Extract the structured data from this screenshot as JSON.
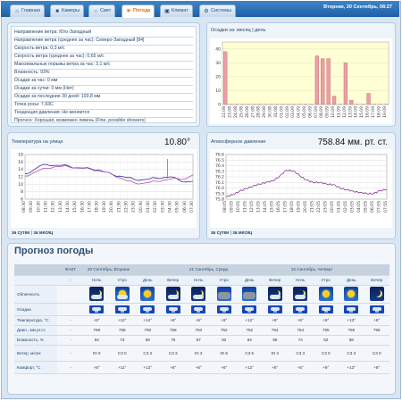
{
  "nav": {
    "tabs": [
      {
        "label": "Главная",
        "icon": "house-icon",
        "glyph": "⌂"
      },
      {
        "label": "Камеры",
        "icon": "camera-icon",
        "glyph": "■"
      },
      {
        "label": "Свет",
        "icon": "lightbulb-icon",
        "glyph": "○"
      },
      {
        "label": "Погода",
        "icon": "weather-icon",
        "glyph": "☀",
        "active": true
      },
      {
        "label": "Климат",
        "icon": "climate-icon",
        "glyph": "▣"
      },
      {
        "label": "Системы",
        "icon": "gear-icon",
        "glyph": "⚙"
      }
    ],
    "datetime": "Вторник, 20 Сентябрь, 08:27"
  },
  "current": {
    "lines": [
      "Направление ветра: Юго-Западный",
      "Направление ветра (среднее за час): Северо-Западный [84]",
      "Скорость ветра: 0,3 м/с",
      "Скорость ветра (среднее за час): 0,65 м/с",
      "Максимальные порывы ветра за час: 3,1 м/с",
      "Влажность: 93%",
      "Осадки за час: 0 мм",
      "Осадки за сутки: 0 мм (Нет)",
      "Осадки за последние 30 дней: 193,8 мм",
      "Точка росы: 7,93С",
      "Тенденция давления: Не меняется",
      "Прогноз: Хорошая, возможен ливень (Fine, possible showers)"
    ]
  },
  "temperature_panel": {
    "title": "Температура на улице",
    "value": "10.80°",
    "link_day": "за сутки",
    "link_month": "за месяц",
    "separator": "|"
  },
  "pressure_panel": {
    "title": "Атмосферное давление",
    "value": "758.84 мм. рт. ст.",
    "link_day": "за сутки",
    "link_month": "за месяц",
    "separator": "|"
  },
  "rain_panel": {
    "title": "Осадки за:",
    "link_month": "месяц",
    "separator": "|",
    "link_day": "день"
  },
  "chart_data": [
    {
      "type": "bar",
      "categories": [
        "22.08",
        "23.08",
        "24.08",
        "25.08",
        "26.08",
        "27.08",
        "28.08",
        "29.08",
        "30.08",
        "31.08",
        "01.09",
        "02.09",
        "03.09",
        "04.09",
        "05.09",
        "06.09",
        "07.09",
        "08.09",
        "09.09",
        "10.09",
        "11.09",
        "12.09",
        "13.09",
        "14.09",
        "15.09",
        "16.09",
        "17.09",
        "18.09",
        "19.09"
      ],
      "values": [
        38,
        0.2,
        0.2,
        0.2,
        0.2,
        0.2,
        0.2,
        0.2,
        0.2,
        0.2,
        0.2,
        0.2,
        0.2,
        0.2,
        0.2,
        0.2,
        35,
        33,
        33,
        6,
        0.2,
        30,
        3,
        0.2,
        0.2,
        8,
        0.2,
        0.2,
        0.2
      ],
      "ylim": [
        0,
        45
      ],
      "yticks": [
        0,
        10,
        20,
        30,
        40
      ],
      "color": "#e9a0a8",
      "background": "#ffffd6"
    },
    {
      "type": "line",
      "x": [
        "08:30",
        "09:30",
        "10:30",
        "11:30",
        "12:30",
        "13:30",
        "14:30",
        "15:30",
        "16:30",
        "17:30",
        "18:30",
        "19:30",
        "20:30",
        "21:30",
        "22:30",
        "23:30",
        "00:30",
        "01:30",
        "02:30",
        "03:30",
        "04:30",
        "05:30",
        "06:30",
        "07:30"
      ],
      "ylim": [
        6,
        18
      ],
      "yticks": [
        6,
        8,
        10,
        12,
        14,
        16,
        18
      ],
      "series": [
        {
          "color": "#3a2a8c",
          "values": [
            12.8,
            13.6,
            14.9,
            15.3,
            15.1,
            15.1,
            14.9,
            14.4,
            14.3,
            14.1,
            13.7,
            13.3,
            12.6,
            12.2,
            11.8,
            11.3,
            11.2,
            11.4,
            11.7,
            11.8,
            12.0,
            11.2,
            10.6,
            10.8
          ]
        },
        {
          "color": "#b64fb6",
          "values": [
            12.2,
            12.9,
            13.8,
            14.3,
            14.7,
            14.8,
            14.7,
            14.5,
            14.4,
            14.2,
            13.9,
            13.3,
            12.6,
            11.7,
            10.9,
            10.4,
            10.2,
            10.5,
            10.8,
            11.1,
            11.4,
            11.5,
            11.5,
            12.5
          ]
        }
      ],
      "spike": {
        "x": "04:00",
        "value": 16.8
      }
    },
    {
      "type": "line",
      "x": [
        "08:05",
        "09:05",
        "10:05",
        "11:05",
        "12:05",
        "13:05",
        "14:05",
        "15:05",
        "16:05",
        "17:05",
        "18:05",
        "19:05",
        "20:05",
        "21:05",
        "22:05",
        "23:05",
        "00:05",
        "01:05",
        "02:05",
        "03:05",
        "04:05",
        "05:05",
        "06:05",
        "07:05",
        "07:55"
      ],
      "ylim": [
        75.8,
        76.6
      ],
      "yticks": [
        75.8,
        75.9,
        76.0,
        76.1,
        76.2,
        76.3,
        76.4,
        76.5,
        76.6
      ],
      "ytick_labels": [
        "75.8",
        "75.9",
        "76.0",
        "76.1",
        "76.2",
        "76.3",
        "76.4",
        "76.5",
        "76.6"
      ],
      "series": [
        {
          "color": "#7a1f8a",
          "values": [
            75.84,
            75.88,
            75.94,
            75.99,
            76.03,
            76.07,
            76.1,
            76.13,
            76.21,
            76.32,
            76.31,
            76.22,
            76.14,
            76.1,
            76.1,
            76.07,
            76.06,
            76.0,
            75.97,
            75.94,
            75.92,
            75.9,
            75.9,
            75.95,
            75.98
          ]
        }
      ]
    }
  ],
  "forecast": {
    "title": "Прогноз погоды",
    "fact_label": "ФАКТ",
    "fact_dash": "-",
    "days": [
      "20 Сентябрь, Вторник",
      "21 Сентябрь, Среда",
      "22 Сентябрь, Четверг"
    ],
    "periods": [
      "Ночь",
      "Утро",
      "День",
      "Вечер"
    ],
    "row_labels": {
      "clouds": "Облачность",
      "precip": "Осадки",
      "temp": "Температура, °С",
      "pressure": "Давл., мм рт.ст.",
      "humidity": "Влажность, %",
      "wind": "Ветер, м/сек",
      "comfort": "Комфорт, °С"
    },
    "icons": [
      "moon-cloud-icon",
      "sun-cloud-icon",
      "sun-icon",
      "moon-cloud-icon",
      "moon-cloud-icon",
      "cloud-icon",
      "cloud-icon",
      "moon-cloud-icon",
      "moon-cloud-icon",
      "sun-icon",
      "sun-icon",
      "moon-icon"
    ],
    "precip_icons": [
      "rain-icon",
      "rain-icon",
      "rain-icon",
      "rain-icon",
      "rain-icon",
      "rain-icon",
      "rain-icon",
      "rain-icon",
      "rain-icon",
      "rain-icon",
      "rain-icon",
      "rain-icon"
    ],
    "temp": {
      "fact": "-",
      "vals": [
        "+8°",
        "+12°",
        "+14°",
        "+8°",
        "+6°",
        "+9°",
        "+12°",
        "+9°",
        "+6°",
        "+9°",
        "+13°",
        "+8°"
      ]
    },
    "pressure": {
      "fact": "-",
      "vals": [
        "759",
        "759",
        "758",
        "758",
        "753",
        "752",
        "752",
        "754",
        "754",
        "755",
        "755",
        "755"
      ]
    },
    "humidity": {
      "fact": "-",
      "vals": [
        "94",
        "73",
        "59",
        "76",
        "87",
        "82",
        "84",
        "95",
        "74",
        "52",
        "58",
        " "
      ]
    },
    "wind": {
      "fact": "-",
      "vals": [
        "Ю 0",
        "С3 0",
        "С3 3",
        "С3 3",
        "Ю 3",
        "Ю 5",
        "С3 5",
        "Ю 3",
        "С3 3",
        "С3 0",
        "С3 3",
        "С3 0"
      ]
    },
    "comfort": {
      "fact": "-",
      "vals": [
        "+8°",
        "+11°",
        "+13°",
        "+8°",
        "+6°",
        "+8°",
        "+12°",
        "+8°",
        "+5°",
        "+9°",
        "+13°",
        "+8°"
      ]
    }
  }
}
